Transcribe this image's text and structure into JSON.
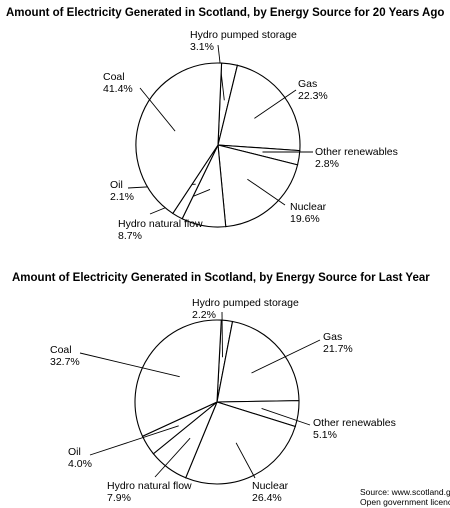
{
  "chart_data": [
    {
      "type": "pie",
      "title": "Amount of Electricity Generated in Scotland, by Energy Source for 20 Years Ago",
      "slices": [
        {
          "label": "Hydro pumped storage",
          "value_text": "3.1%",
          "value": 3.1
        },
        {
          "label": "Gas",
          "value_text": "22.3%",
          "value": 22.3
        },
        {
          "label": "Other renewables",
          "value_text": "2.8%",
          "value": 2.8
        },
        {
          "label": "Nuclear",
          "value_text": "19.6%",
          "value": 19.6
        },
        {
          "label": "Hydro natural flow",
          "value_text": "8.7%",
          "value": 8.7
        },
        {
          "label": "Oil",
          "value_text": "2.1%",
          "value": 2.1
        },
        {
          "label": "Coal",
          "value_text": "41.4%",
          "value": 41.4
        }
      ]
    },
    {
      "type": "pie",
      "title": "Amount of Electricity Generated in Scotland, by Energy Source for Last Year",
      "slices": [
        {
          "label": "Hydro pumped storage",
          "value_text": "2.2%",
          "value": 2.2
        },
        {
          "label": "Gas",
          "value_text": "21.7%",
          "value": 21.7
        },
        {
          "label": "Other renewables",
          "value_text": "5.1%",
          "value": 5.1
        },
        {
          "label": "Nuclear",
          "value_text": "26.4%",
          "value": 26.4
        },
        {
          "label": "Hydro natural flow",
          "value_text": "7.9%",
          "value": 7.9
        },
        {
          "label": "Oil",
          "value_text": "4.0%",
          "value": 4.0
        },
        {
          "label": "Coal",
          "value_text": "32.7%",
          "value": 32.7
        }
      ]
    }
  ],
  "source": {
    "line1": "Source: www.scotland.gov.",
    "line2": "Open government licence"
  }
}
